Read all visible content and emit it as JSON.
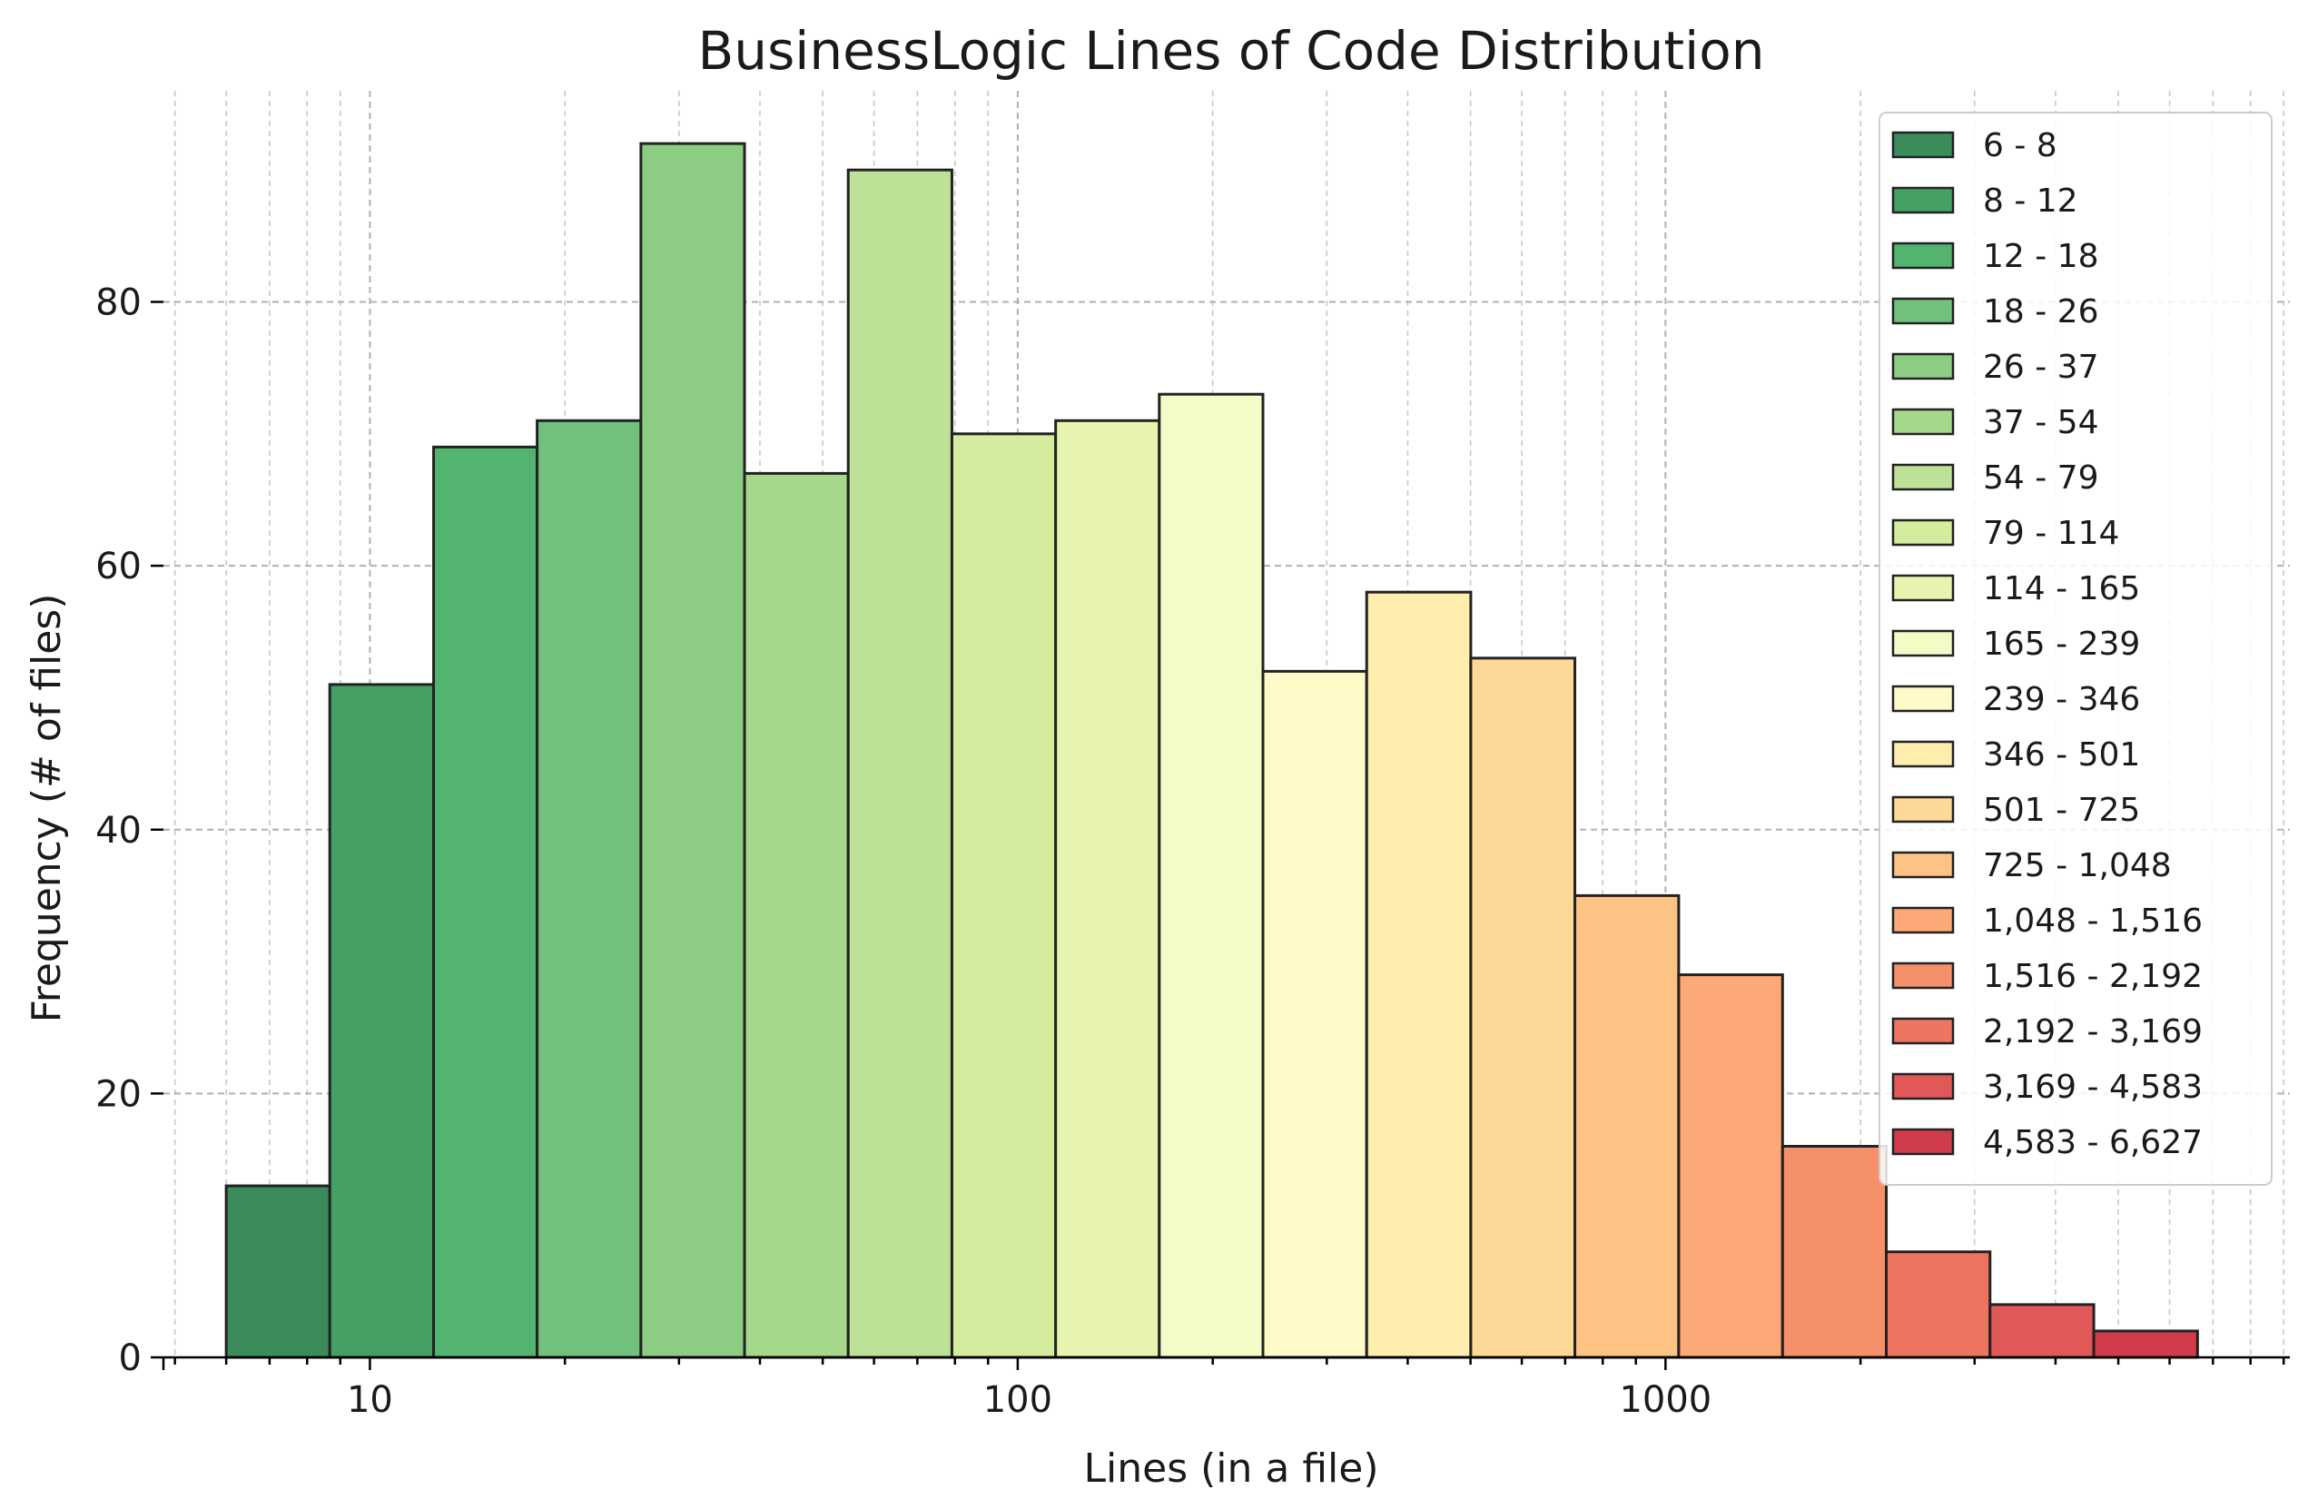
{
  "chart_data": {
    "type": "bar",
    "title": "BusinessLogic Lines of Code Distribution",
    "xlabel": "Lines (in a file)",
    "ylabel": "Frequency (# of files)",
    "x_scale": "log",
    "xlim": [
      4.8,
      9200
    ],
    "ylim": [
      0,
      96
    ],
    "x_ticks": [
      10,
      100,
      1000
    ],
    "x_tick_labels": [
      "10",
      "100",
      "1000"
    ],
    "y_ticks": [
      0,
      20,
      40,
      60,
      80
    ],
    "y_tick_labels": [
      "0",
      "20",
      "40",
      "60",
      "80"
    ],
    "grid": true,
    "legend_position": "top-right",
    "bins": [
      {
        "label": "6 - 8",
        "lo": 6,
        "hi": 8.67,
        "count": 13,
        "color": "#3b8c5a"
      },
      {
        "label": "8 - 12",
        "lo": 8.67,
        "hi": 12.54,
        "count": 51,
        "color": "#44a065"
      },
      {
        "label": "12 - 18",
        "lo": 12.54,
        "hi": 18.12,
        "count": 69,
        "color": "#52b46f"
      },
      {
        "label": "18 - 26",
        "lo": 18.12,
        "hi": 26.2,
        "count": 71,
        "color": "#71c17c"
      },
      {
        "label": "26 - 37",
        "lo": 26.2,
        "hi": 37.87,
        "count": 92,
        "color": "#8ccd83"
      },
      {
        "label": "37 - 54",
        "lo": 37.87,
        "hi": 54.75,
        "count": 67,
        "color": "#a5d88a"
      },
      {
        "label": "54 - 79",
        "lo": 54.75,
        "hi": 79.15,
        "count": 90,
        "color": "#bde196"
      },
      {
        "label": "79 - 114",
        "lo": 79.15,
        "hi": 114.43,
        "count": 70,
        "color": "#d3ec9e"
      },
      {
        "label": "114 - 165",
        "lo": 114.43,
        "hi": 165.4,
        "count": 71,
        "color": "#e6f4b0"
      },
      {
        "label": "165 - 239",
        "lo": 165.4,
        "hi": 239.1,
        "count": 73,
        "color": "#f5fbc6"
      },
      {
        "label": "239 - 346",
        "lo": 239.1,
        "hi": 345.7,
        "count": 52,
        "color": "#fffac8"
      },
      {
        "label": "346 - 501",
        "lo": 345.7,
        "hi": 500.5,
        "count": 58,
        "color": "#ffedae"
      },
      {
        "label": "501 - 725",
        "lo": 500.5,
        "hi": 724.6,
        "count": 53,
        "color": "#fed897"
      },
      {
        "label": "725 - 1,048",
        "lo": 724.6,
        "hi": 1048,
        "count": 35,
        "color": "#fdc385"
      },
      {
        "label": "1,048 - 1,516",
        "lo": 1048,
        "hi": 1516,
        "count": 29,
        "color": "#fca877"
      },
      {
        "label": "1,516 - 2,192",
        "lo": 1516,
        "hi": 2192,
        "count": 16,
        "color": "#f6906a"
      },
      {
        "label": "2,192 - 3,169",
        "lo": 2192,
        "hi": 3169,
        "count": 8,
        "color": "#ed7461"
      },
      {
        "label": "3,169 - 4,583",
        "lo": 3169,
        "hi": 4583,
        "count": 4,
        "color": "#e05857"
      },
      {
        "label": "4,583 - 6,627",
        "lo": 4583,
        "hi": 6627,
        "count": 2,
        "color": "#d03c4c"
      }
    ]
  }
}
